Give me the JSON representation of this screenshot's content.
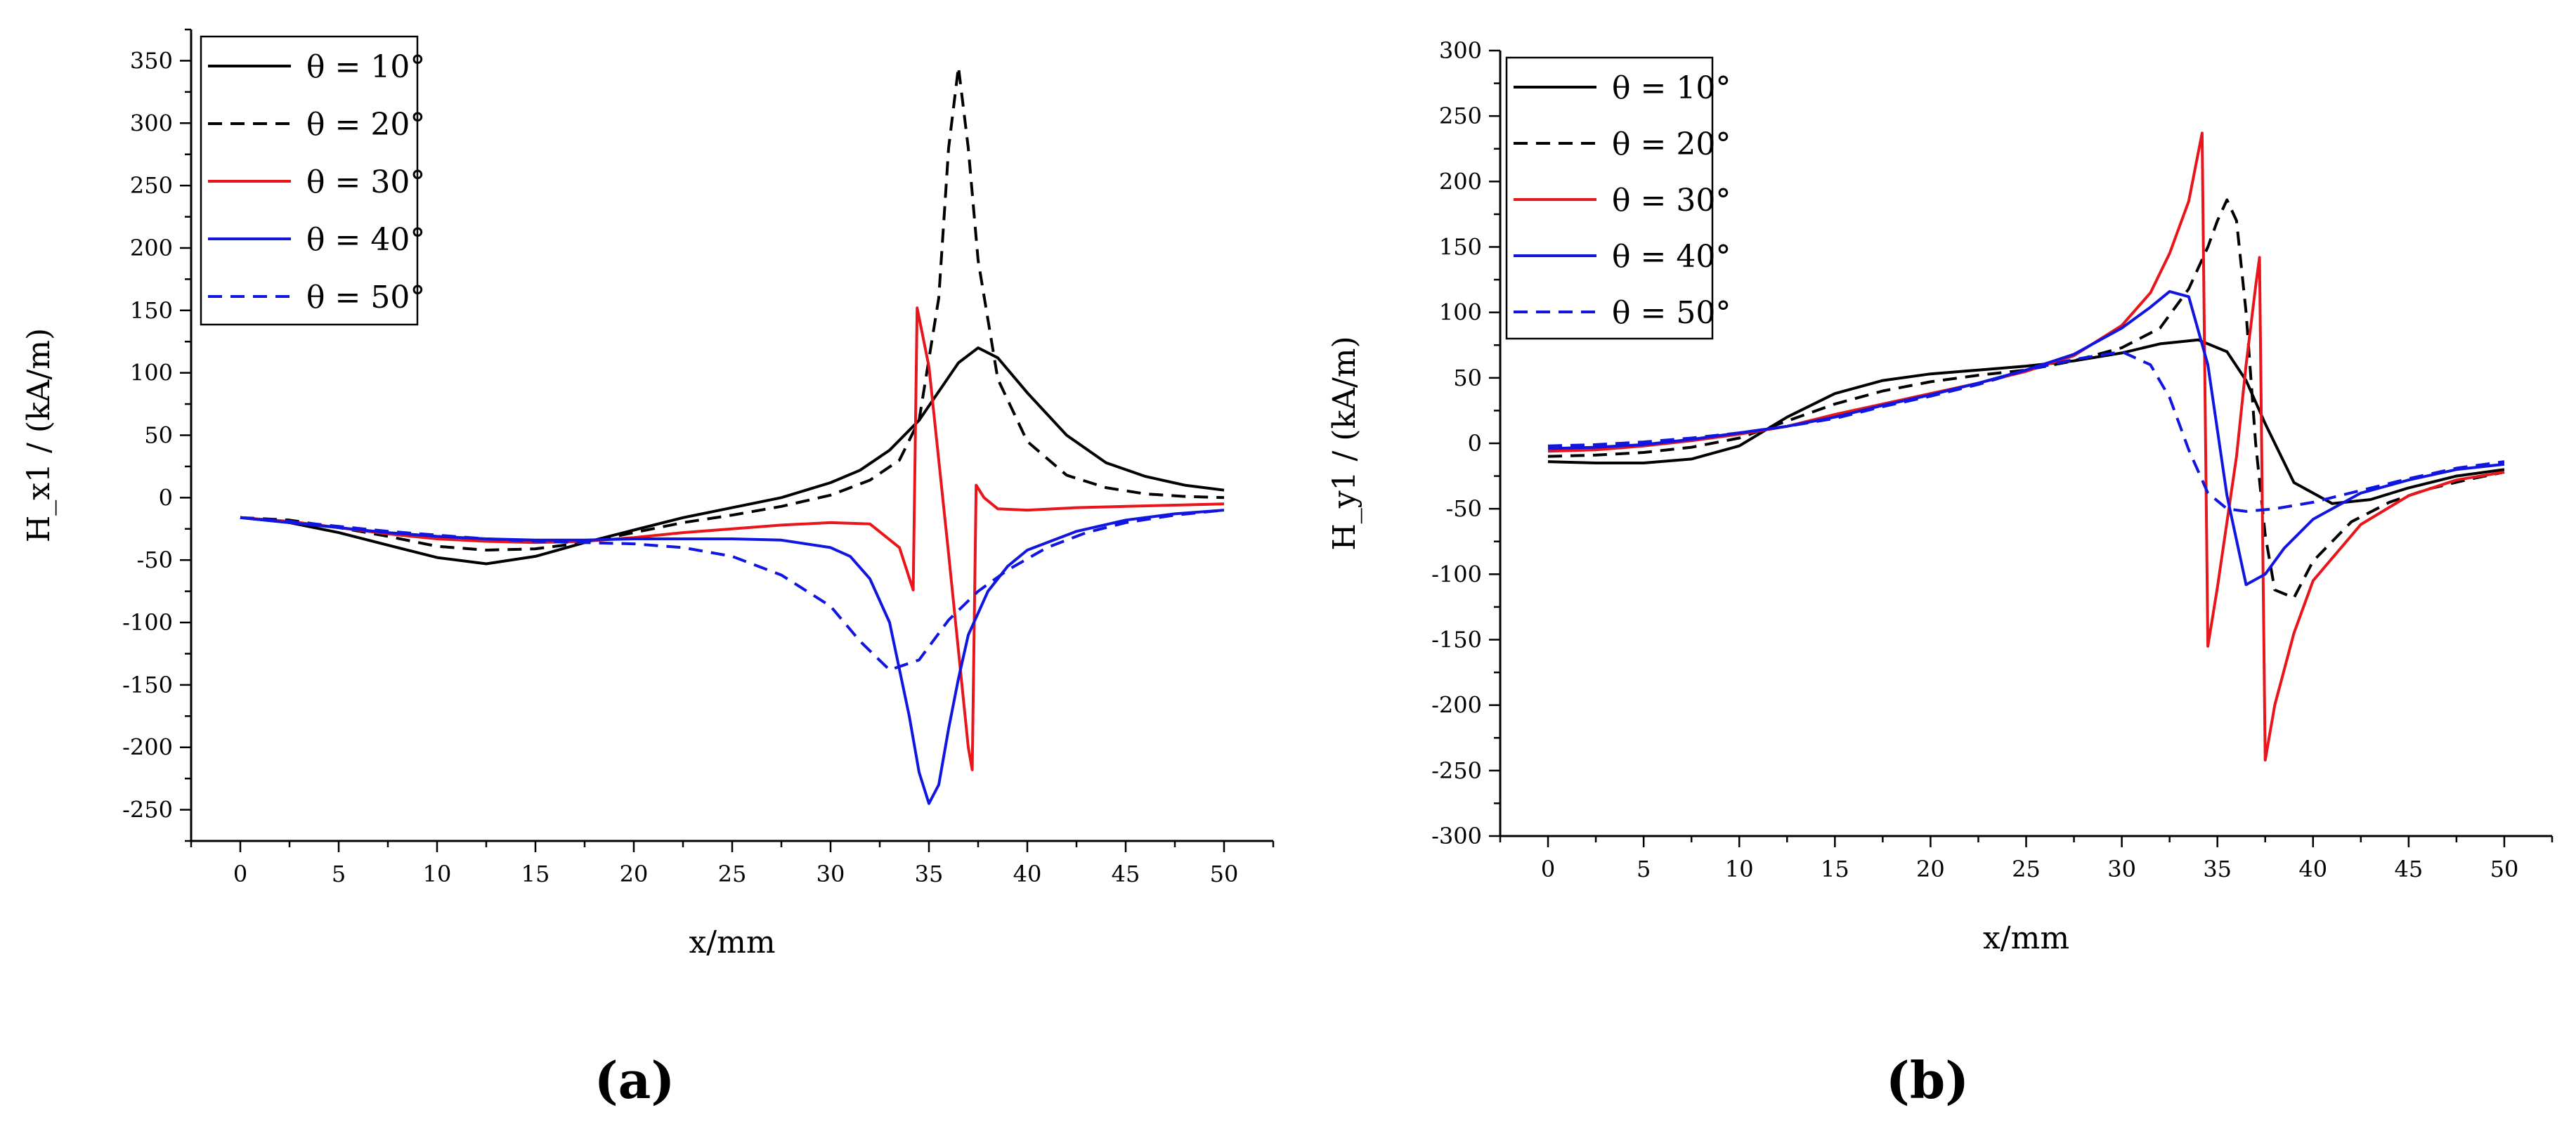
{
  "chart_data": [
    {
      "type": "line",
      "panel_label": "(a)",
      "xlabel": "x/mm",
      "ylabel": "H_x1 / (kA/m)",
      "xlim": [
        -2.5,
        52.5
      ],
      "ylim": [
        -275,
        375
      ],
      "x_ticks": [
        0,
        5,
        10,
        15,
        20,
        25,
        30,
        35,
        40,
        45,
        50
      ],
      "y_ticks": [
        -250,
        -200,
        -150,
        -100,
        -50,
        0,
        50,
        100,
        150,
        200,
        250,
        300,
        350
      ],
      "legend_position": "top-left",
      "series": [
        {
          "name": "θ = 10°",
          "theta": "10",
          "color": "#000000",
          "dash": "solid",
          "x": [
            0,
            2.5,
            5,
            7.5,
            10,
            12.5,
            15,
            17.5,
            20,
            22.5,
            25,
            27.5,
            30,
            31.5,
            33,
            34.5,
            35.5,
            36.5,
            37.5,
            38.5,
            40,
            42,
            44,
            46,
            48,
            50
          ],
          "y": [
            -16,
            -20,
            -28,
            -38,
            -48,
            -53,
            -47,
            -36,
            -26,
            -16,
            -8,
            0,
            12,
            22,
            38,
            62,
            85,
            108,
            120,
            112,
            84,
            50,
            28,
            17,
            10,
            6
          ]
        },
        {
          "name": "θ = 20°",
          "theta": "20",
          "color": "#000000",
          "dash": "dashed",
          "x": [
            0,
            2.5,
            5,
            7.5,
            10,
            12.5,
            15,
            17.5,
            20,
            22.5,
            25,
            27.5,
            30,
            32,
            33.5,
            34.5,
            35.5,
            36,
            36.5,
            37,
            37.5,
            38.5,
            40,
            42,
            44,
            46,
            48,
            50
          ],
          "y": [
            -16,
            -18,
            -24,
            -31,
            -39,
            -42,
            -41,
            -36,
            -28,
            -20,
            -14,
            -7,
            2,
            14,
            30,
            62,
            160,
            280,
            345,
            280,
            190,
            95,
            45,
            18,
            8,
            3,
            1,
            0
          ]
        },
        {
          "name": "θ = 30°",
          "theta": "30",
          "color": "#e8151b",
          "dash": "solid",
          "x": [
            0,
            2.5,
            5,
            7.5,
            10,
            12.5,
            15,
            17.5,
            20,
            22.5,
            25,
            27.5,
            30,
            32,
            33.5,
            34.2,
            34.4,
            35,
            36,
            37,
            37.2,
            37.4,
            37.8,
            38.5,
            40,
            42.5,
            45,
            47.5,
            50
          ],
          "y": [
            -16,
            -19,
            -24,
            -29,
            -33,
            -35,
            -36,
            -35,
            -32,
            -28,
            -25,
            -22,
            -20,
            -21,
            -40,
            -74,
            152,
            105,
            -45,
            -200,
            -218,
            10,
            0,
            -9,
            -10,
            -8,
            -7,
            -6,
            -5
          ]
        },
        {
          "name": "θ = 40°",
          "theta": "40",
          "color": "#1015e0",
          "dash": "solid",
          "x": [
            0,
            2.5,
            5,
            7.5,
            10,
            12.5,
            15,
            17.5,
            20,
            22.5,
            25,
            27.5,
            30,
            31,
            32,
            33,
            34,
            34.5,
            35,
            35.5,
            36,
            36.5,
            37,
            38,
            39,
            40,
            42.5,
            45,
            47.5,
            50
          ],
          "y": [
            -16,
            -20,
            -24,
            -28,
            -31,
            -33,
            -34,
            -34,
            -33,
            -33,
            -33,
            -34,
            -40,
            -47,
            -65,
            -100,
            -175,
            -220,
            -245,
            -230,
            -185,
            -145,
            -110,
            -75,
            -55,
            -42,
            -27,
            -18,
            -13,
            -10
          ]
        },
        {
          "name": "θ = 50°",
          "theta": "50",
          "color": "#1015e0",
          "dash": "dashed",
          "x": [
            0,
            2.5,
            5,
            7.5,
            10,
            12.5,
            15,
            17.5,
            20,
            22.5,
            25,
            27.5,
            30,
            31.5,
            33,
            34.5,
            36,
            37.5,
            39,
            41,
            43,
            45,
            47.5,
            50
          ],
          "y": [
            -16,
            -19,
            -23,
            -27,
            -30,
            -33,
            -35,
            -36,
            -37,
            -40,
            -47,
            -62,
            -87,
            -115,
            -138,
            -130,
            -98,
            -75,
            -58,
            -40,
            -28,
            -20,
            -14,
            -10
          ]
        }
      ]
    },
    {
      "type": "line",
      "panel_label": "(b)",
      "xlabel": "x/mm",
      "ylabel": "H_y1 / (kA/m)",
      "xlim": [
        -2.5,
        52.5
      ],
      "ylim": [
        -300,
        300
      ],
      "x_ticks": [
        0,
        5,
        10,
        15,
        20,
        25,
        30,
        35,
        40,
        45,
        50
      ],
      "y_ticks": [
        -300,
        -250,
        -200,
        -150,
        -100,
        -50,
        0,
        50,
        100,
        150,
        200,
        250,
        300
      ],
      "legend_position": "top-left",
      "series": [
        {
          "name": "θ = 10°",
          "theta": "10",
          "color": "#000000",
          "dash": "solid",
          "x": [
            0,
            2.5,
            5,
            7.5,
            10,
            12.5,
            15,
            17.5,
            20,
            22.5,
            25,
            27.5,
            30,
            32,
            34,
            35.5,
            36.5,
            37.5,
            39,
            41,
            43,
            45,
            47.5,
            50
          ],
          "y": [
            -14,
            -15,
            -15,
            -12,
            -2,
            20,
            38,
            48,
            53,
            56,
            59,
            63,
            69,
            76,
            79,
            70,
            48,
            15,
            -30,
            -46,
            -43,
            -34,
            -25,
            -20
          ]
        },
        {
          "name": "θ = 20°",
          "theta": "20",
          "color": "#000000",
          "dash": "dashed",
          "x": [
            0,
            2.5,
            5,
            7.5,
            10,
            12.5,
            15,
            17.5,
            20,
            22.5,
            25,
            27.5,
            30,
            32,
            33.5,
            34.5,
            35,
            35.5,
            36,
            36.5,
            37,
            37.5,
            38,
            39,
            40,
            42,
            44,
            46,
            48,
            50
          ],
          "y": [
            -10,
            -9,
            -7,
            -3,
            4,
            17,
            30,
            40,
            47,
            52,
            56,
            63,
            73,
            88,
            118,
            150,
            170,
            186,
            170,
            100,
            0,
            -70,
            -112,
            -118,
            -90,
            -60,
            -45,
            -35,
            -28,
            -22
          ]
        },
        {
          "name": "θ = 30°",
          "theta": "30",
          "color": "#e8151b",
          "dash": "solid",
          "x": [
            0,
            2.5,
            5,
            7.5,
            10,
            12.5,
            15,
            17.5,
            20,
            22.5,
            25,
            27.5,
            30,
            31.5,
            32.5,
            33.5,
            34.2,
            34.5,
            35,
            35.5,
            36,
            36.5,
            37,
            37.2,
            37.5,
            38,
            39,
            40,
            42.5,
            45,
            47.5,
            50
          ],
          "y": [
            -6,
            -5,
            -2,
            2,
            7,
            13,
            22,
            30,
            38,
            46,
            55,
            67,
            90,
            115,
            145,
            185,
            237,
            -155,
            -110,
            -60,
            -10,
            60,
            120,
            142,
            -242,
            -200,
            -145,
            -105,
            -62,
            -40,
            -28,
            -22
          ]
        },
        {
          "name": "θ = 40°",
          "theta": "40",
          "color": "#1015e0",
          "dash": "solid",
          "x": [
            0,
            2.5,
            5,
            7.5,
            10,
            12.5,
            15,
            17.5,
            20,
            22.5,
            25,
            27.5,
            30,
            31.5,
            32.5,
            33.5,
            34.5,
            35.5,
            36.5,
            37.5,
            38.5,
            40,
            42.5,
            45,
            47.5,
            50
          ],
          "y": [
            -4,
            -3,
            -1,
            3,
            8,
            13,
            20,
            29,
            37,
            46,
            56,
            68,
            88,
            104,
            116,
            112,
            60,
            -40,
            -108,
            -100,
            -80,
            -58,
            -38,
            -28,
            -20,
            -16
          ]
        },
        {
          "name": "θ = 50°",
          "theta": "50",
          "color": "#1015e0",
          "dash": "dashed",
          "x": [
            0,
            2.5,
            5,
            7.5,
            10,
            12.5,
            15,
            17.5,
            20,
            22.5,
            25,
            27.5,
            30,
            31.5,
            32.5,
            33.5,
            34.5,
            35.5,
            36.5,
            38,
            40,
            42.5,
            45,
            47.5,
            50
          ],
          "y": [
            -2,
            -1,
            1,
            4,
            8,
            13,
            19,
            28,
            36,
            45,
            56,
            64,
            70,
            60,
            35,
            -5,
            -38,
            -50,
            -52,
            -50,
            -45,
            -36,
            -27,
            -19,
            -14
          ]
        }
      ]
    }
  ]
}
